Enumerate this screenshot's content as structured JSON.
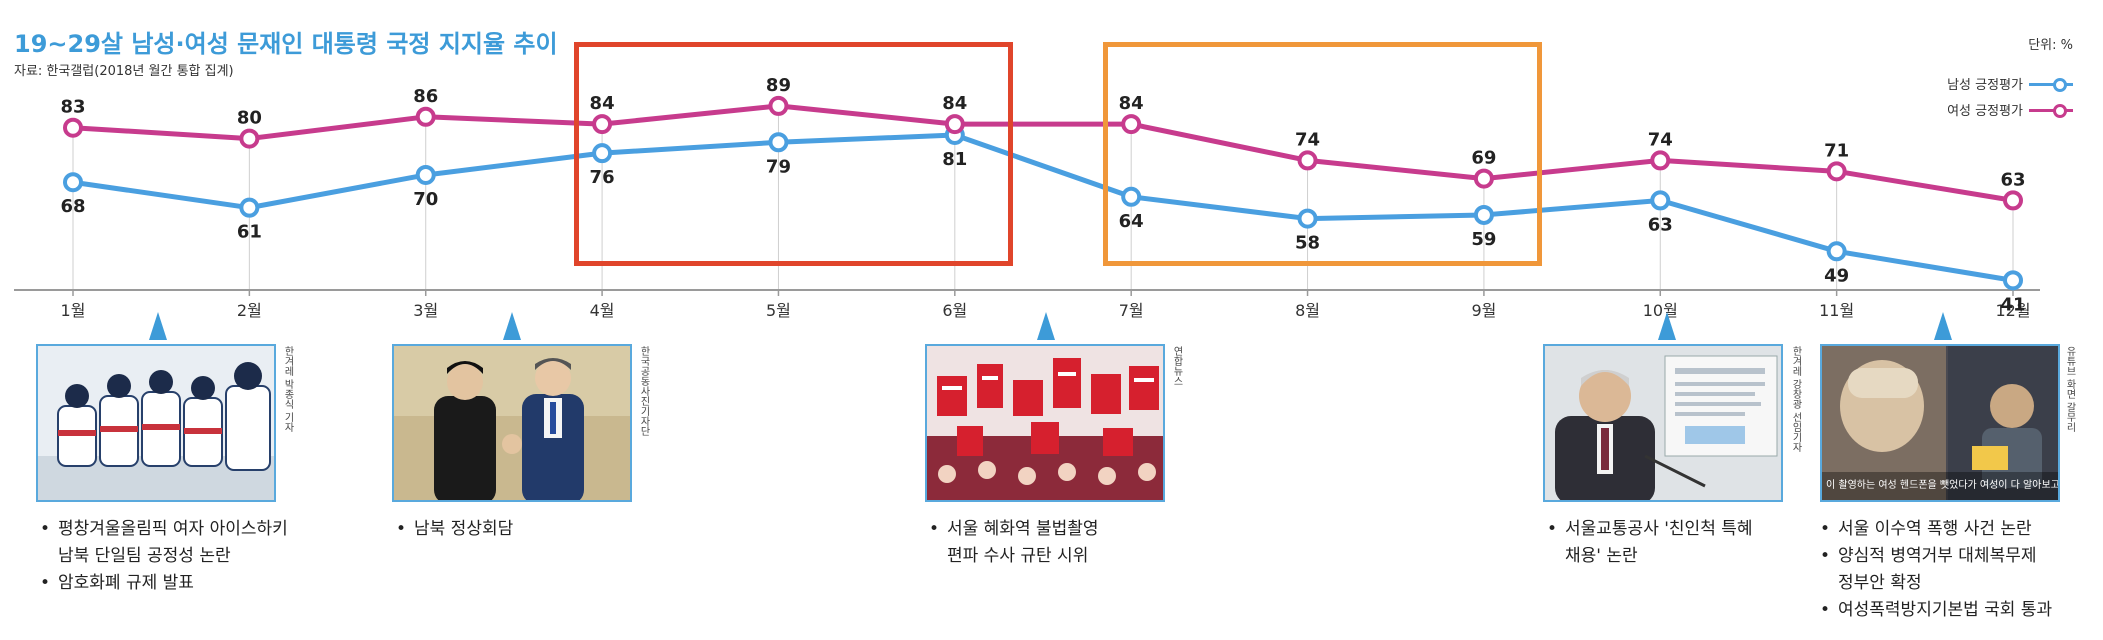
{
  "title": "19~29살 남성·여성 문재인 대통령 국정 지지율 추이",
  "source": "자료: 한국갤럽(2018년 월간 통합 집계)",
  "unit": "단위: %",
  "legend": [
    {
      "label": "남성 긍정평가",
      "color": "#4a9fe0"
    },
    {
      "label": "여성 긍정평가",
      "color": "#c73b8d"
    }
  ],
  "chart_data": {
    "type": "line",
    "categories": [
      "1월",
      "2월",
      "3월",
      "4월",
      "5월",
      "6월",
      "7월",
      "8월",
      "9월",
      "10월",
      "11월",
      "12월"
    ],
    "series": [
      {
        "name": "남성 긍정평가",
        "color": "#4a9fe0",
        "values": [
          68,
          61,
          70,
          76,
          79,
          81,
          64,
          58,
          59,
          63,
          49,
          41
        ]
      },
      {
        "name": "여성 긍정평가",
        "color": "#c73b8d",
        "values": [
          83,
          80,
          86,
          84,
          89,
          84,
          84,
          74,
          69,
          74,
          71,
          63
        ]
      }
    ],
    "ylim": [
      40,
      92
    ],
    "grid": false,
    "legend_position": "top-right"
  },
  "highlights": [
    {
      "from_month": "4월",
      "to_month": "6월",
      "color": "#e0452b"
    },
    {
      "from_month": "7월",
      "to_month": "9월",
      "color": "#f0973a"
    }
  ],
  "events": [
    {
      "month": "2월",
      "photo": "ice-hockey-team-photo",
      "credit": "한겨레 박종식 기자",
      "notes": [
        "평창겨울올림픽 여자 아이스하키\n남북 단일팀 공정성 논란",
        "암호화폐 규제 발표"
      ]
    },
    {
      "month": "4월",
      "photo": "summit-handshake-photo",
      "credit": "한국공동사진기자단",
      "notes": [
        "남북 정상회담"
      ]
    },
    {
      "month": "7월",
      "photo": "protest-rally-photo",
      "credit": "연합뉴스",
      "notes": [
        "서울 혜화역 불법촬영\n편파 수사 규탄 시위"
      ]
    },
    {
      "month": "10월",
      "photo": "press-conference-photo",
      "credit": "한겨레 강창광 선임기자",
      "notes": [
        "서울교통공사 '친인척 특혜\n채용' 논란"
      ]
    },
    {
      "month": "12월",
      "photo": "video-capture-photo",
      "credit": "유튜브 화면 갈무리",
      "caption": "이 촬영하는 여성 헨드폰을 뺏었다가 여성이 다 알아보고 있지 않다 으으니다",
      "notes": [
        "서울 이수역 폭행 사건 논란",
        "양심적 병역거부 대체복무제\n정부안 확정",
        "여성폭력방지기본법 국회 통과"
      ]
    }
  ]
}
